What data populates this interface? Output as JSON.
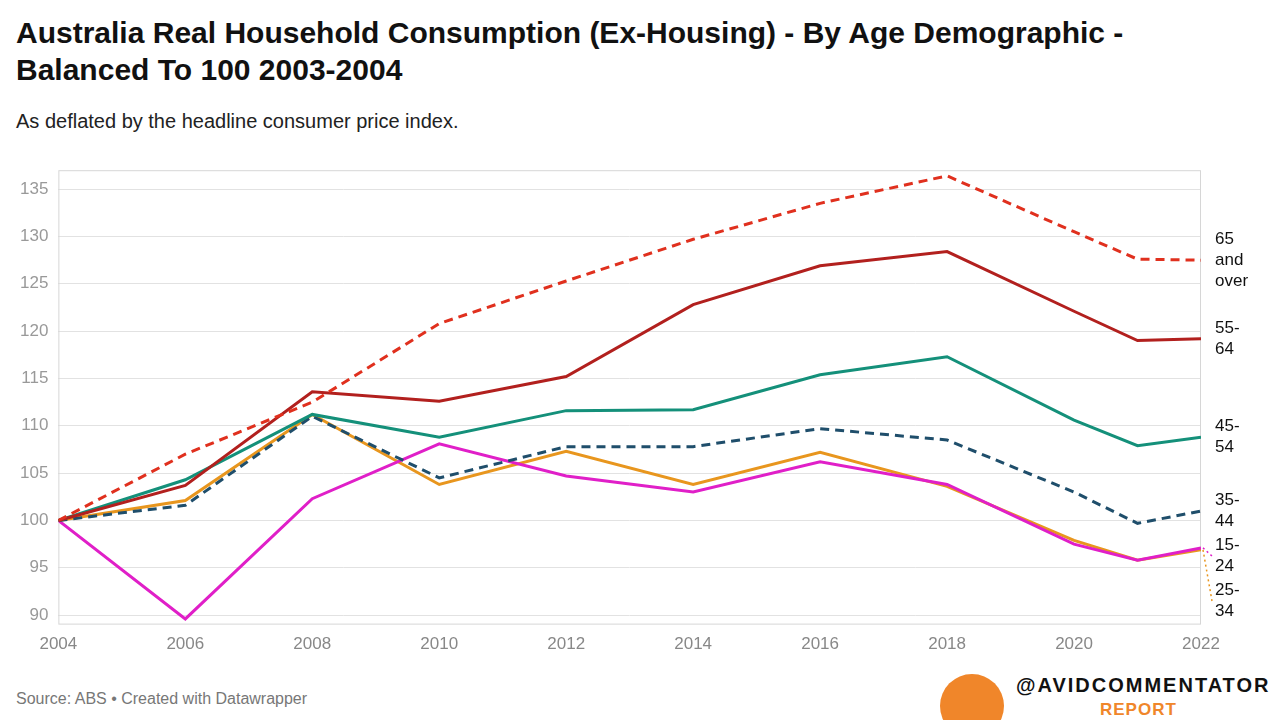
{
  "chart_data": {
    "type": "line",
    "title": "Australia Real Household Consumption (Ex-Housing) - By Age Demographic - Balanced To 100 2003-2004",
    "subtitle": "As deflated by the headline consumer price index.",
    "source": "Source: ABS • Created with Datawrapper",
    "annotations": [
      "@AVIDCOMMENTATOR",
      "REPORT"
    ],
    "x": [
      2004,
      2006,
      2008,
      2010,
      2012,
      2014,
      2016,
      2018,
      2020,
      2021,
      2022
    ],
    "series": [
      {
        "name": "65 and over",
        "color": "#e0301e",
        "line_style": "dashed",
        "values": [
          100,
          107,
          112.5,
          120.8,
          125.3,
          129.7,
          133.5,
          136.4,
          130.5,
          127.6,
          127.5
        ]
      },
      {
        "name": "55-64",
        "color": "#b2201e",
        "line_style": "solid",
        "values": [
          100,
          103.7,
          113.6,
          112.6,
          115.2,
          122.8,
          126.9,
          128.4,
          122.1,
          119.0,
          119.2
        ]
      },
      {
        "name": "45-54",
        "color": "#14907a",
        "line_style": "solid",
        "values": [
          100,
          104.3,
          111.2,
          108.8,
          111.6,
          111.7,
          115.4,
          117.3,
          110.6,
          107.9,
          108.8
        ]
      },
      {
        "name": "35-44",
        "color": "#1f4e6b",
        "line_style": "dashed",
        "values": [
          100,
          101.6,
          111.0,
          104.5,
          107.8,
          107.8,
          109.7,
          108.5,
          103.0,
          99.7,
          101.0
        ]
      },
      {
        "name": "15-24",
        "color": "#e01fc8",
        "line_style": "solid",
        "values": [
          100,
          89.6,
          102.3,
          108.1,
          104.7,
          103.0,
          106.2,
          103.8,
          97.5,
          95.8,
          97.1
        ]
      },
      {
        "name": "25-34",
        "color": "#e8961e",
        "line_style": "solid",
        "values": [
          100,
          102.1,
          111.2,
          103.8,
          107.3,
          103.8,
          107.2,
          103.6,
          97.9,
          95.8,
          96.9
        ]
      }
    ],
    "xlim": [
      2004,
      2022
    ],
    "xticks": [
      2004,
      2006,
      2008,
      2010,
      2012,
      2014,
      2016,
      2018,
      2020,
      2022
    ],
    "ylim": [
      89,
      137
    ],
    "yticks": [
      90,
      95,
      100,
      105,
      110,
      115,
      120,
      125,
      130,
      135
    ],
    "grid": "y"
  }
}
